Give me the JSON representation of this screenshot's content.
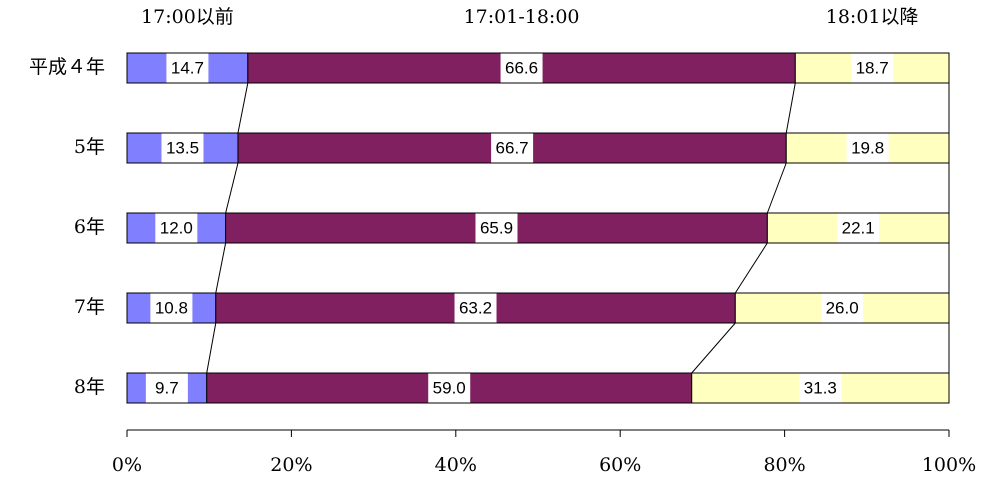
{
  "chart_data": {
    "type": "stacked-bar-horizontal",
    "categories": [
      "平成４年",
      "5年",
      "6年",
      "7年",
      "8年"
    ],
    "series": [
      {
        "name": "17:00以前",
        "color": "#8080ff",
        "values": [
          14.7,
          13.5,
          12.0,
          10.8,
          9.7
        ],
        "value_labels": [
          "14.7",
          "13.5",
          "12.0",
          "10.8",
          "9.7"
        ]
      },
      {
        "name": "17:01-18:00",
        "color": "#802060",
        "values": [
          66.6,
          66.7,
          65.9,
          63.2,
          59.0
        ],
        "value_labels": [
          "66.6",
          "66.7",
          "65.9",
          "63.2",
          "59.0"
        ]
      },
      {
        "name": "18:01以降",
        "color": "#ffffc0",
        "values": [
          18.7,
          19.8,
          22.1,
          26.0,
          31.3
        ],
        "value_labels": [
          "18.7",
          "19.8",
          "22.1",
          "26.0",
          "31.3"
        ]
      }
    ],
    "xlim": [
      0,
      100
    ],
    "xticks": [
      {
        "value": 0,
        "label": "0%"
      },
      {
        "value": 20,
        "label": "20%"
      },
      {
        "value": 40,
        "label": "40%"
      },
      {
        "value": 60,
        "label": "60%"
      },
      {
        "value": 80,
        "label": "80%"
      },
      {
        "value": 100,
        "label": "100%"
      }
    ]
  }
}
